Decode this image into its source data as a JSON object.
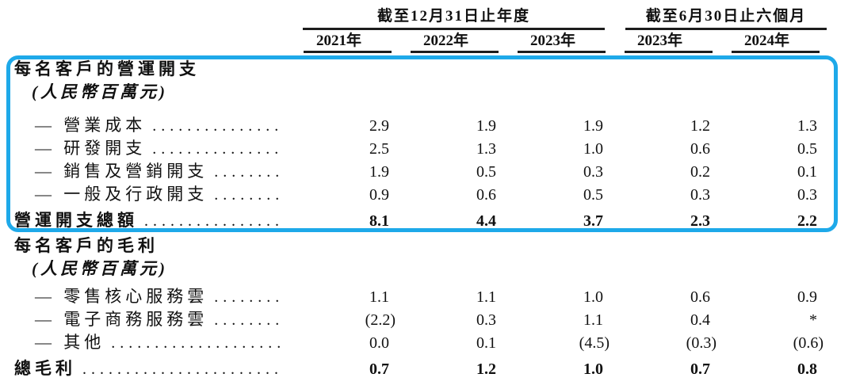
{
  "table": {
    "highlight_color": "#1EA9E9",
    "column_groups": [
      {
        "title": "截至12月31日止年度",
        "years": [
          "2021年",
          "2022年",
          "2023年"
        ]
      },
      {
        "title": "截至6月30日止六個月",
        "years": [
          "2023年",
          "2024年"
        ]
      }
    ],
    "sections": [
      {
        "highlighted": true,
        "header": "每名客戶的營運開支",
        "unit": "(人民幣百萬元)",
        "rows": [
          {
            "label": "— 營業成本",
            "values": [
              "2.9",
              "1.9",
              "1.9",
              "1.2",
              "1.3"
            ]
          },
          {
            "label": "— 研發開支",
            "values": [
              "2.5",
              "1.3",
              "1.0",
              "0.6",
              "0.5"
            ]
          },
          {
            "label": "— 銷售及營銷開支",
            "values": [
              "1.9",
              "0.5",
              "0.3",
              "0.2",
              "0.1"
            ]
          },
          {
            "label": "— 一般及行政開支",
            "values": [
              "0.9",
              "0.6",
              "0.5",
              "0.3",
              "0.3"
            ]
          }
        ],
        "total": {
          "label": "營運開支總額",
          "values": [
            "8.1",
            "4.4",
            "3.7",
            "2.3",
            "2.2"
          ]
        }
      },
      {
        "highlighted": false,
        "header": "每名客戶的毛利",
        "unit": "(人民幣百萬元)",
        "rows": [
          {
            "label": "— 零售核心服務雲",
            "values": [
              "1.1",
              "1.1",
              "1.0",
              "0.6",
              "0.9"
            ]
          },
          {
            "label": "— 電子商務服務雲",
            "values": [
              "(2.2)",
              "0.3",
              "1.1",
              "0.4",
              "*"
            ]
          },
          {
            "label": "— 其他",
            "values": [
              "0.0",
              "0.1",
              "(4.5)",
              "(0.3)",
              "(0.6)"
            ]
          }
        ],
        "total": {
          "label": "總毛利",
          "values": [
            "0.7",
            "1.2",
            "1.0",
            "0.7",
            "0.8"
          ]
        }
      }
    ]
  }
}
